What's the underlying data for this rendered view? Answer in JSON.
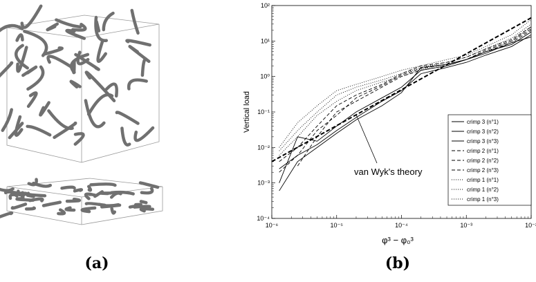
{
  "chart_data": {
    "type": "line",
    "xlabel": "φ³ − φ₀³",
    "ylabel": "Vertical load",
    "xscale": "log",
    "yscale": "log",
    "legend": "center right",
    "xlim": [
      1e-06,
      0.01
    ],
    "ylim": [
      0.0001,
      100
    ],
    "xticks": [
      {
        "value": 1e-06,
        "label": "10⁻⁶"
      },
      {
        "value": 1e-05,
        "label": "10⁻⁵"
      },
      {
        "value": 0.0001,
        "label": "10⁻⁴"
      },
      {
        "value": 0.001,
        "label": "10⁻³"
      },
      {
        "value": 0.01,
        "label": "10⁻²"
      }
    ],
    "yticks": [
      {
        "value": 0.0001,
        "label": "10⁻⁴"
      },
      {
        "value": 0.001,
        "label": "10⁻³"
      },
      {
        "value": 0.01,
        "label": "10⁻²"
      },
      {
        "value": 0.1,
        "label": "10⁻¹"
      },
      {
        "value": 1,
        "label": "10⁰"
      },
      {
        "value": 10,
        "label": "10¹"
      },
      {
        "value": 100,
        "label": "10²"
      }
    ],
    "x": [
      1.3e-06,
      2.5e-06,
      5e-06,
      1e-05,
      2e-05,
      5e-05,
      0.0001,
      0.0002,
      0.0005,
      0.001,
      0.002,
      0.005,
      0.01
    ],
    "series": [
      {
        "name": "crimp 3 (n°1)",
        "color": "#000000",
        "dash": "solid",
        "values": [
          0.0025,
          0.006,
          0.012,
          0.03,
          0.07,
          0.2,
          0.4,
          1.2,
          1.8,
          2.5,
          4,
          7,
          15
        ]
      },
      {
        "name": "crimp 3 (n°2)",
        "color": "#000000",
        "dash": "solid",
        "values": [
          0.001,
          0.02,
          0.015,
          0.04,
          0.1,
          0.25,
          0.5,
          1.5,
          2,
          3,
          5,
          8,
          18
        ]
      },
      {
        "name": "crimp 3 (n°3)",
        "color": "#000000",
        "dash": "solid",
        "values": [
          0.0006,
          0.004,
          0.01,
          0.025,
          0.06,
          0.15,
          0.35,
          1.8,
          2.2,
          3,
          4.5,
          9,
          13
        ]
      },
      {
        "name": "crimp 2 (n°1)",
        "color": "#000000",
        "dash": "dashed",
        "values": [
          null,
          0.003,
          0.02,
          0.1,
          0.2,
          0.5,
          1,
          1.5,
          2,
          3,
          5,
          9,
          20
        ]
      },
      {
        "name": "crimp 2 (n°2)",
        "color": "#000000",
        "dash": "dashed",
        "values": [
          0.004,
          0.01,
          0.04,
          0.15,
          0.3,
          0.6,
          1.2,
          2,
          2.5,
          3.5,
          6,
          11,
          25
        ]
      },
      {
        "name": "crimp 2 (n°3)",
        "color": "#000000",
        "dash": "dashed",
        "values": [
          0.002,
          0.006,
          0.03,
          0.08,
          0.25,
          0.55,
          1.1,
          1.7,
          2.2,
          3,
          5.5,
          10,
          22
        ]
      },
      {
        "name": "crimp 1 (n°1)",
        "color": "#000000",
        "dash": "dotted",
        "values": [
          0.008,
          0.03,
          0.1,
          0.3,
          0.5,
          0.8,
          1.2,
          1.8,
          2.5,
          3.5,
          6,
          12,
          30
        ]
      },
      {
        "name": "crimp 1 (n°2)",
        "color": "#000000",
        "dash": "dotted",
        "values": [
          0.01,
          0.05,
          0.15,
          0.4,
          0.6,
          1,
          1.5,
          2,
          3,
          4,
          7,
          15,
          40
        ]
      },
      {
        "name": "crimp 1 (n°3)",
        "color": "#000000",
        "dash": "dotted",
        "values": [
          0.006,
          0.02,
          0.08,
          0.2,
          0.4,
          0.7,
          1,
          1.6,
          2.2,
          3,
          5,
          10,
          25
        ]
      }
    ],
    "theory": {
      "x": [
        1e-06,
        0.01
      ],
      "values": [
        0.004,
        45
      ]
    },
    "annotation": "van Wyk's theory"
  },
  "captions": [
    "(a)",
    "(b)"
  ]
}
